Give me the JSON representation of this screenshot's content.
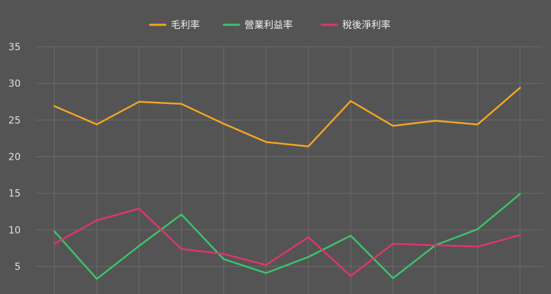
{
  "chart_data": {
    "type": "line",
    "x": [
      "",
      "",
      "",
      "",
      "",
      "",
      "",
      "",
      "",
      "",
      "",
      ""
    ],
    "ylim": [
      2,
      35
    ],
    "yticks": [
      5,
      10,
      15,
      20,
      25,
      30,
      35
    ],
    "grid": true,
    "legend_position": "top-center",
    "series": [
      {
        "name": "毛利率",
        "color": "#f5a623",
        "values": [
          26.9,
          24.4,
          27.5,
          27.2,
          24.5,
          22.0,
          21.4,
          27.6,
          24.2,
          24.9,
          24.4,
          29.4
        ]
      },
      {
        "name": "營業利益率",
        "color": "#3cc46e",
        "values": [
          9.8,
          3.3,
          7.8,
          12.1,
          6.0,
          4.1,
          6.3,
          9.2,
          3.4,
          7.9,
          10.1,
          14.9
        ]
      },
      {
        "name": "稅後淨利率",
        "color": "#e2346c",
        "values": [
          8.1,
          11.3,
          12.9,
          7.4,
          6.7,
          5.2,
          9.0,
          3.7,
          8.1,
          7.9,
          7.7,
          9.3
        ]
      }
    ]
  }
}
